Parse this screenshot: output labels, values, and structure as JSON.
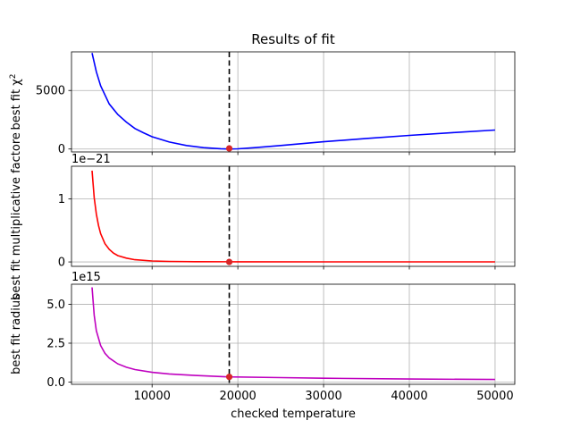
{
  "figure": {
    "title": "Results of fit",
    "xlabel": "checked temperature"
  },
  "chart_data": [
    {
      "type": "line",
      "title": "Results of fit",
      "xlabel": "",
      "ylabel": "best fit χ²",
      "xlim": [
        600,
        52300
      ],
      "ylim": [
        -250,
        8300
      ],
      "yticks": [
        0,
        5000
      ],
      "ytick_labels": [
        "0",
        "5000"
      ],
      "xticks": [
        10000,
        20000,
        30000,
        40000,
        50000
      ],
      "offset_text": "",
      "grid": true,
      "color": "#0000ff",
      "x": [
        3000,
        3500,
        4000,
        5000,
        6000,
        7000,
        8000,
        9000,
        10000,
        12000,
        14000,
        16000,
        18000,
        19000,
        20000,
        22000,
        25000,
        30000,
        35000,
        40000,
        45000,
        50000
      ],
      "y": [
        8200,
        6600,
        5400,
        3850,
        2950,
        2300,
        1750,
        1380,
        1050,
        600,
        300,
        120,
        25,
        0,
        20,
        120,
        300,
        620,
        900,
        1160,
        1400,
        1620
      ],
      "marker": {
        "x": 19000,
        "y": 50,
        "color": "#d62728"
      },
      "vline_x": 19000
    },
    {
      "type": "line",
      "xlabel": "",
      "ylabel": "best fit multiplicative factore",
      "xlim": [
        600,
        52300
      ],
      "ylim": [
        -0.07,
        1.52
      ],
      "yticks": [
        0,
        1
      ],
      "ytick_labels": [
        "0",
        "1"
      ],
      "xticks": [
        10000,
        20000,
        30000,
        40000,
        50000
      ],
      "offset_text": "1e−21",
      "grid": true,
      "color": "#ff0000",
      "x": [
        3000,
        3250,
        3500,
        3750,
        4000,
        4500,
        5000,
        5500,
        6000,
        7000,
        8000,
        10000,
        12000,
        15000,
        20000,
        30000,
        40000,
        50000
      ],
      "y": [
        1.45,
        1.02,
        0.76,
        0.58,
        0.45,
        0.29,
        0.2,
        0.14,
        0.1,
        0.06,
        0.035,
        0.015,
        0.008,
        0.004,
        0.002,
        0.0007,
        0.0004,
        0.0003
      ],
      "marker": {
        "x": 19000,
        "y": 0,
        "color": "#d62728"
      },
      "vline_x": 19000
    },
    {
      "type": "line",
      "xlabel": "checked temperature",
      "ylabel": "best fit radius",
      "xlim": [
        600,
        52300
      ],
      "ylim": [
        -0.15,
        6.3
      ],
      "yticks": [
        0,
        2.5,
        5
      ],
      "ytick_labels": [
        "0.0",
        "2.5",
        "5.0"
      ],
      "xticks": [
        10000,
        20000,
        30000,
        40000,
        50000
      ],
      "xtick_labels": [
        "10000",
        "20000",
        "30000",
        "40000",
        "50000"
      ],
      "offset_text": "1e15",
      "grid": true,
      "color": "#bf00bf",
      "x": [
        3000,
        3250,
        3500,
        4000,
        4500,
        5000,
        6000,
        7000,
        8000,
        10000,
        12000,
        15000,
        19000,
        25000,
        30000,
        40000,
        50000
      ],
      "y": [
        6.1,
        4.3,
        3.3,
        2.35,
        1.85,
        1.55,
        1.17,
        0.95,
        0.8,
        0.62,
        0.52,
        0.42,
        0.33,
        0.28,
        0.24,
        0.19,
        0.16
      ],
      "marker": {
        "x": 19000,
        "y": 0.33,
        "color": "#d62728"
      },
      "vline_x": 19000
    }
  ]
}
